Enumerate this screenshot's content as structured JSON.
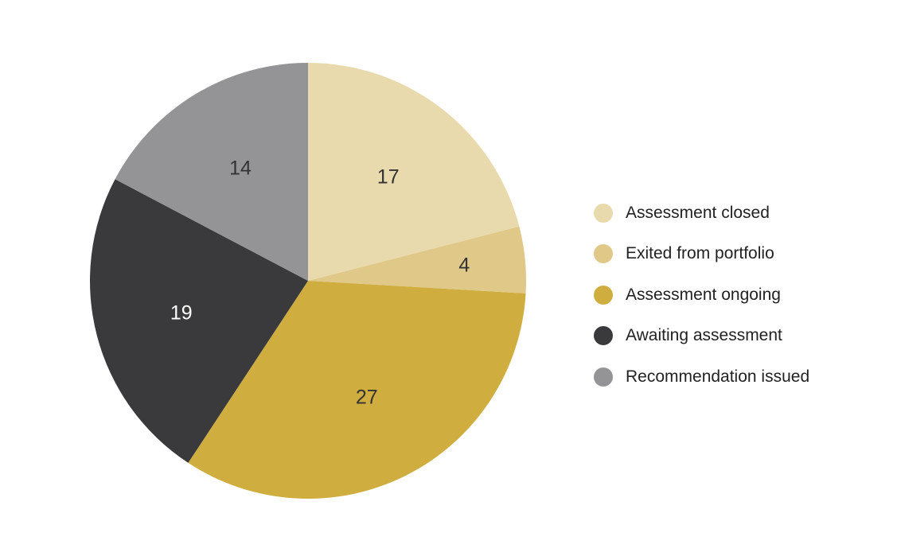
{
  "chart_data": {
    "type": "pie",
    "title": "",
    "categories": [
      "Assessment closed",
      "Exited from portfolio",
      "Assessment ongoing",
      "Awaiting assessment",
      "Recommendation issued"
    ],
    "values": [
      17,
      4,
      27,
      19,
      14
    ],
    "colors": [
      "#e9daae",
      "#e0c988",
      "#cfad3f",
      "#3a393b",
      "#949497"
    ],
    "label_colors": [
      "#333333",
      "#333333",
      "#333333",
      "#ffffff",
      "#333333"
    ],
    "start_angle": "12 o'clock",
    "direction": "clockwise",
    "legend_position": "right",
    "data_labels": true
  },
  "legend": {
    "items": [
      {
        "label": "Assessment closed",
        "color": "#e9daae"
      },
      {
        "label": "Exited from portfolio",
        "color": "#e0c988"
      },
      {
        "label": "Assessment ongoing",
        "color": "#cfad3f"
      },
      {
        "label": "Awaiting assessment",
        "color": "#3a393b"
      },
      {
        "label": "Recommendation issued",
        "color": "#949497"
      }
    ]
  }
}
